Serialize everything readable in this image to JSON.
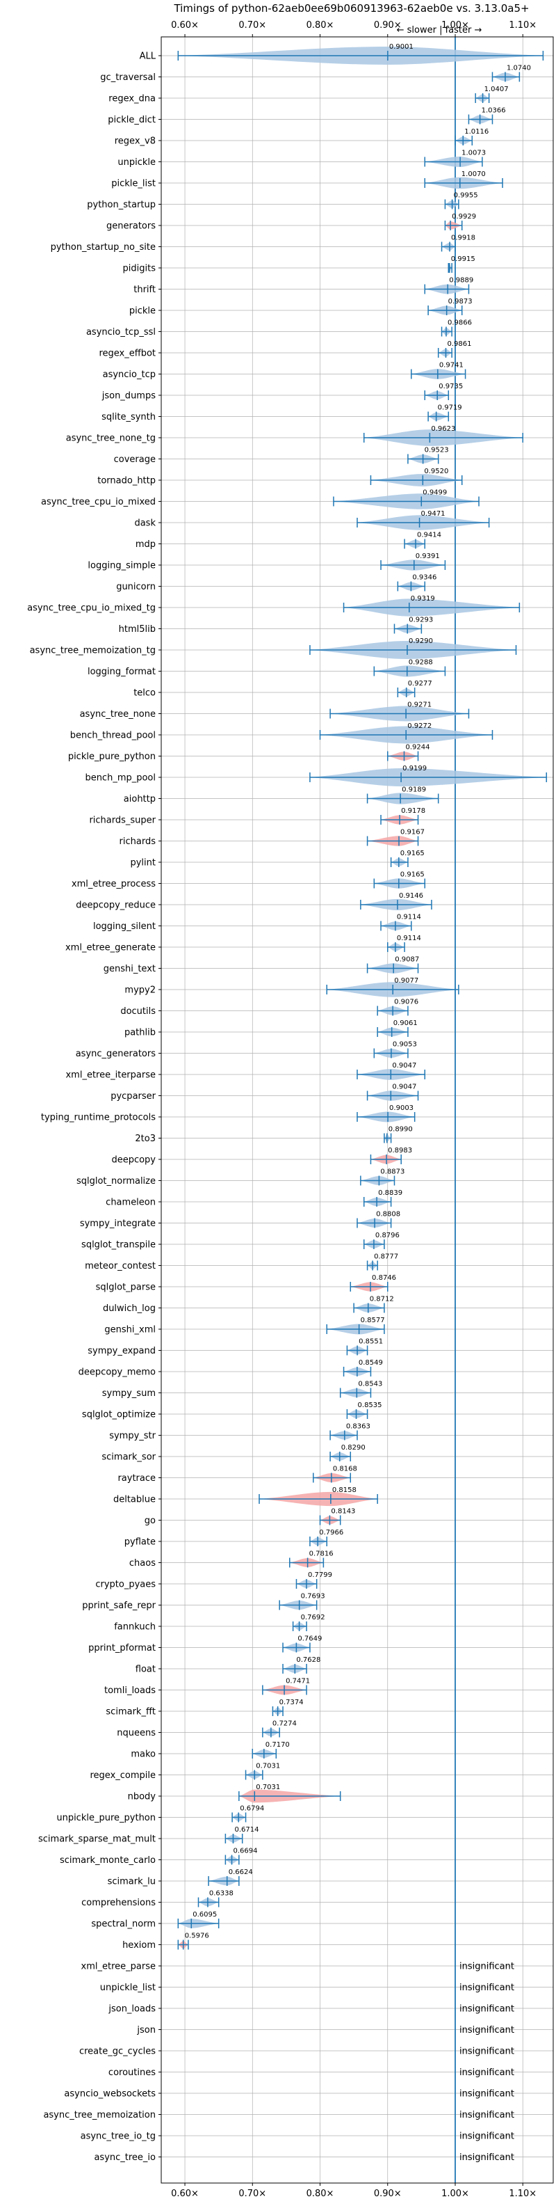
{
  "chart_data": {
    "type": "violin",
    "title": "Timings of python-62aeb0ee69b060913963-62aeb0e vs. 3.13.0a5+",
    "direction_label": "← slower | faster →",
    "xlim": [
      0.565,
      1.145
    ],
    "xticks": [
      0.6,
      0.7,
      0.8,
      0.9,
      1.0,
      1.1
    ],
    "xtick_labels": [
      "0.60×",
      "0.70×",
      "0.80×",
      "0.90×",
      "1.00×",
      "1.10×"
    ],
    "reference_line": 1.0,
    "insignificant_label": "insignificant",
    "colors": {
      "faster": "#a9c7e3",
      "slower": "#f4a6a6",
      "line": "#1f77b4",
      "grid": "#b0b0b0"
    },
    "benchmarks": [
      {
        "name": "ALL",
        "median": 0.9001,
        "low": 0.59,
        "high": 1.13,
        "sig": true
      },
      {
        "name": "gc_traversal",
        "median": 1.074,
        "low": 1.055,
        "high": 1.095,
        "sig": true
      },
      {
        "name": "regex_dna",
        "median": 1.0407,
        "low": 1.03,
        "high": 1.05,
        "sig": true
      },
      {
        "name": "pickle_dict",
        "median": 1.0366,
        "low": 1.02,
        "high": 1.055,
        "sig": true
      },
      {
        "name": "regex_v8",
        "median": 1.0116,
        "low": 1.0,
        "high": 1.025,
        "sig": true
      },
      {
        "name": "unpickle",
        "median": 1.0073,
        "low": 0.955,
        "high": 1.04,
        "sig": true
      },
      {
        "name": "pickle_list",
        "median": 1.007,
        "low": 0.955,
        "high": 1.07,
        "sig": true
      },
      {
        "name": "python_startup",
        "median": 0.9955,
        "low": 0.985,
        "high": 1.005,
        "sig": true
      },
      {
        "name": "generators",
        "median": 0.9929,
        "low": 0.985,
        "high": 1.01,
        "sig": true
      },
      {
        "name": "python_startup_no_site",
        "median": 0.9918,
        "low": 0.98,
        "high": 1.0,
        "sig": true
      },
      {
        "name": "pidigits",
        "median": 0.9915,
        "low": 0.99,
        "high": 0.995,
        "sig": true
      },
      {
        "name": "thrift",
        "median": 0.9889,
        "low": 0.955,
        "high": 1.02,
        "sig": true
      },
      {
        "name": "pickle",
        "median": 0.9873,
        "low": 0.96,
        "high": 1.01,
        "sig": true
      },
      {
        "name": "asyncio_tcp_ssl",
        "median": 0.9866,
        "low": 0.98,
        "high": 0.995,
        "sig": true
      },
      {
        "name": "regex_effbot",
        "median": 0.9861,
        "low": 0.975,
        "high": 0.995,
        "sig": true
      },
      {
        "name": "asyncio_tcp",
        "median": 0.9741,
        "low": 0.935,
        "high": 1.015,
        "sig": true
      },
      {
        "name": "json_dumps",
        "median": 0.9735,
        "low": 0.955,
        "high": 0.99,
        "sig": true
      },
      {
        "name": "sqlite_synth",
        "median": 0.9719,
        "low": 0.96,
        "high": 0.99,
        "sig": true
      },
      {
        "name": "async_tree_none_tg",
        "median": 0.9623,
        "low": 0.865,
        "high": 1.1,
        "sig": true
      },
      {
        "name": "coverage",
        "median": 0.9523,
        "low": 0.93,
        "high": 0.975,
        "sig": true
      },
      {
        "name": "tornado_http",
        "median": 0.952,
        "low": 0.875,
        "high": 1.01,
        "sig": true
      },
      {
        "name": "async_tree_cpu_io_mixed",
        "median": 0.9499,
        "low": 0.82,
        "high": 1.035,
        "sig": true
      },
      {
        "name": "dask",
        "median": 0.9471,
        "low": 0.855,
        "high": 1.05,
        "sig": true
      },
      {
        "name": "mdp",
        "median": 0.9414,
        "low": 0.925,
        "high": 0.955,
        "sig": true
      },
      {
        "name": "logging_simple",
        "median": 0.9391,
        "low": 0.89,
        "high": 0.985,
        "sig": true
      },
      {
        "name": "gunicorn",
        "median": 0.9346,
        "low": 0.915,
        "high": 0.955,
        "sig": true
      },
      {
        "name": "async_tree_cpu_io_mixed_tg",
        "median": 0.9319,
        "low": 0.835,
        "high": 1.095,
        "sig": true
      },
      {
        "name": "html5lib",
        "median": 0.9293,
        "low": 0.91,
        "high": 0.95,
        "sig": true
      },
      {
        "name": "async_tree_memoization_tg",
        "median": 0.929,
        "low": 0.785,
        "high": 1.09,
        "sig": true
      },
      {
        "name": "logging_format",
        "median": 0.9288,
        "low": 0.88,
        "high": 0.985,
        "sig": true
      },
      {
        "name": "telco",
        "median": 0.9277,
        "low": 0.915,
        "high": 0.94,
        "sig": true
      },
      {
        "name": "async_tree_none",
        "median": 0.9271,
        "low": 0.815,
        "high": 1.02,
        "sig": true
      },
      {
        "name": "bench_thread_pool",
        "median": 0.9272,
        "low": 0.8,
        "high": 1.055,
        "sig": true
      },
      {
        "name": "pickle_pure_python",
        "median": 0.9244,
        "low": 0.9,
        "high": 0.945,
        "sig": true
      },
      {
        "name": "bench_mp_pool",
        "median": 0.9199,
        "low": 0.785,
        "high": 1.135,
        "sig": true
      },
      {
        "name": "aiohttp",
        "median": 0.9189,
        "low": 0.87,
        "high": 0.975,
        "sig": true
      },
      {
        "name": "richards_super",
        "median": 0.9178,
        "low": 0.89,
        "high": 0.945,
        "sig": true
      },
      {
        "name": "richards",
        "median": 0.9167,
        "low": 0.87,
        "high": 0.945,
        "sig": true
      },
      {
        "name": "pylint",
        "median": 0.9165,
        "low": 0.905,
        "high": 0.93,
        "sig": true
      },
      {
        "name": "xml_etree_process",
        "median": 0.9165,
        "low": 0.88,
        "high": 0.955,
        "sig": true
      },
      {
        "name": "deepcopy_reduce",
        "median": 0.9146,
        "low": 0.86,
        "high": 0.965,
        "sig": true
      },
      {
        "name": "logging_silent",
        "median": 0.9114,
        "low": 0.89,
        "high": 0.935,
        "sig": true
      },
      {
        "name": "xml_etree_generate",
        "median": 0.9114,
        "low": 0.9,
        "high": 0.925,
        "sig": true
      },
      {
        "name": "genshi_text",
        "median": 0.9087,
        "low": 0.87,
        "high": 0.945,
        "sig": true
      },
      {
        "name": "mypy2",
        "median": 0.9077,
        "low": 0.81,
        "high": 1.005,
        "sig": true
      },
      {
        "name": "docutils",
        "median": 0.9076,
        "low": 0.885,
        "high": 0.93,
        "sig": true
      },
      {
        "name": "pathlib",
        "median": 0.9061,
        "low": 0.885,
        "high": 0.93,
        "sig": true
      },
      {
        "name": "async_generators",
        "median": 0.9053,
        "low": 0.88,
        "high": 0.93,
        "sig": true
      },
      {
        "name": "xml_etree_iterparse",
        "median": 0.9047,
        "low": 0.855,
        "high": 0.955,
        "sig": true
      },
      {
        "name": "pycparser",
        "median": 0.9047,
        "low": 0.87,
        "high": 0.945,
        "sig": true
      },
      {
        "name": "typing_runtime_protocols",
        "median": 0.9003,
        "low": 0.855,
        "high": 0.94,
        "sig": true
      },
      {
        "name": "2to3",
        "median": 0.899,
        "low": 0.895,
        "high": 0.905,
        "sig": true
      },
      {
        "name": "deepcopy",
        "median": 0.8983,
        "low": 0.875,
        "high": 0.92,
        "sig": true
      },
      {
        "name": "sqlglot_normalize",
        "median": 0.8873,
        "low": 0.86,
        "high": 0.91,
        "sig": true
      },
      {
        "name": "chameleon",
        "median": 0.8839,
        "low": 0.865,
        "high": 0.905,
        "sig": true
      },
      {
        "name": "sympy_integrate",
        "median": 0.8808,
        "low": 0.855,
        "high": 0.905,
        "sig": true
      },
      {
        "name": "sqlglot_transpile",
        "median": 0.8796,
        "low": 0.865,
        "high": 0.895,
        "sig": true
      },
      {
        "name": "meteor_contest",
        "median": 0.8777,
        "low": 0.87,
        "high": 0.885,
        "sig": true
      },
      {
        "name": "sqlglot_parse",
        "median": 0.8746,
        "low": 0.845,
        "high": 0.9,
        "sig": true
      },
      {
        "name": "dulwich_log",
        "median": 0.8712,
        "low": 0.85,
        "high": 0.895,
        "sig": true
      },
      {
        "name": "genshi_xml",
        "median": 0.8577,
        "low": 0.81,
        "high": 0.895,
        "sig": true
      },
      {
        "name": "sympy_expand",
        "median": 0.8551,
        "low": 0.84,
        "high": 0.87,
        "sig": true
      },
      {
        "name": "deepcopy_memo",
        "median": 0.8549,
        "low": 0.835,
        "high": 0.875,
        "sig": true
      },
      {
        "name": "sympy_sum",
        "median": 0.8543,
        "low": 0.83,
        "high": 0.875,
        "sig": true
      },
      {
        "name": "sqlglot_optimize",
        "median": 0.8535,
        "low": 0.84,
        "high": 0.87,
        "sig": true
      },
      {
        "name": "sympy_str",
        "median": 0.8363,
        "low": 0.815,
        "high": 0.855,
        "sig": true
      },
      {
        "name": "scimark_sor",
        "median": 0.829,
        "low": 0.815,
        "high": 0.845,
        "sig": true
      },
      {
        "name": "raytrace",
        "median": 0.8168,
        "low": 0.79,
        "high": 0.845,
        "sig": true
      },
      {
        "name": "deltablue",
        "median": 0.8158,
        "low": 0.71,
        "high": 0.885,
        "sig": true
      },
      {
        "name": "go",
        "median": 0.8143,
        "low": 0.8,
        "high": 0.83,
        "sig": true
      },
      {
        "name": "pyflate",
        "median": 0.7966,
        "low": 0.785,
        "high": 0.81,
        "sig": true
      },
      {
        "name": "chaos",
        "median": 0.7816,
        "low": 0.755,
        "high": 0.805,
        "sig": true
      },
      {
        "name": "crypto_pyaes",
        "median": 0.7799,
        "low": 0.765,
        "high": 0.795,
        "sig": true
      },
      {
        "name": "pprint_safe_repr",
        "median": 0.7693,
        "low": 0.74,
        "high": 0.795,
        "sig": true
      },
      {
        "name": "fannkuch",
        "median": 0.7692,
        "low": 0.76,
        "high": 0.78,
        "sig": true
      },
      {
        "name": "pprint_pformat",
        "median": 0.7649,
        "low": 0.745,
        "high": 0.785,
        "sig": true
      },
      {
        "name": "float",
        "median": 0.7628,
        "low": 0.745,
        "high": 0.78,
        "sig": true
      },
      {
        "name": "tomli_loads",
        "median": 0.7471,
        "low": 0.715,
        "high": 0.78,
        "sig": true
      },
      {
        "name": "scimark_fft",
        "median": 0.7374,
        "low": 0.73,
        "high": 0.745,
        "sig": true
      },
      {
        "name": "nqueens",
        "median": 0.7274,
        "low": 0.715,
        "high": 0.74,
        "sig": true
      },
      {
        "name": "mako",
        "median": 0.717,
        "low": 0.7,
        "high": 0.735,
        "sig": true
      },
      {
        "name": "regex_compile",
        "median": 0.7031,
        "low": 0.69,
        "high": 0.715,
        "sig": true
      },
      {
        "name": "nbody",
        "median": 0.7031,
        "low": 0.68,
        "high": 0.83,
        "sig": true
      },
      {
        "name": "unpickle_pure_python",
        "median": 0.6794,
        "low": 0.67,
        "high": 0.69,
        "sig": true
      },
      {
        "name": "scimark_sparse_mat_mult",
        "median": 0.6714,
        "low": 0.66,
        "high": 0.685,
        "sig": true
      },
      {
        "name": "scimark_monte_carlo",
        "median": 0.6694,
        "low": 0.66,
        "high": 0.68,
        "sig": true
      },
      {
        "name": "scimark_lu",
        "median": 0.6624,
        "low": 0.635,
        "high": 0.68,
        "sig": true
      },
      {
        "name": "comprehensions",
        "median": 0.6338,
        "low": 0.62,
        "high": 0.65,
        "sig": true
      },
      {
        "name": "spectral_norm",
        "median": 0.6095,
        "low": 0.59,
        "high": 0.65,
        "sig": true
      },
      {
        "name": "hexiom",
        "median": 0.5976,
        "low": 0.59,
        "high": 0.605,
        "sig": true
      },
      {
        "name": "xml_etree_parse",
        "sig": false
      },
      {
        "name": "unpickle_list",
        "sig": false
      },
      {
        "name": "json_loads",
        "sig": false
      },
      {
        "name": "json",
        "sig": false
      },
      {
        "name": "create_gc_cycles",
        "sig": false
      },
      {
        "name": "coroutines",
        "sig": false
      },
      {
        "name": "asyncio_websockets",
        "sig": false
      },
      {
        "name": "async_tree_memoization",
        "sig": false
      },
      {
        "name": "async_tree_io_tg",
        "sig": false
      },
      {
        "name": "async_tree_io",
        "sig": false
      }
    ],
    "slower_highlight": [
      "generators",
      "pickle_pure_python",
      "richards_super",
      "richards",
      "deepcopy",
      "sqlglot_parse",
      "raytrace",
      "deltablue",
      "go",
      "chaos",
      "tomli_loads",
      "nbody",
      "hexiom"
    ]
  }
}
